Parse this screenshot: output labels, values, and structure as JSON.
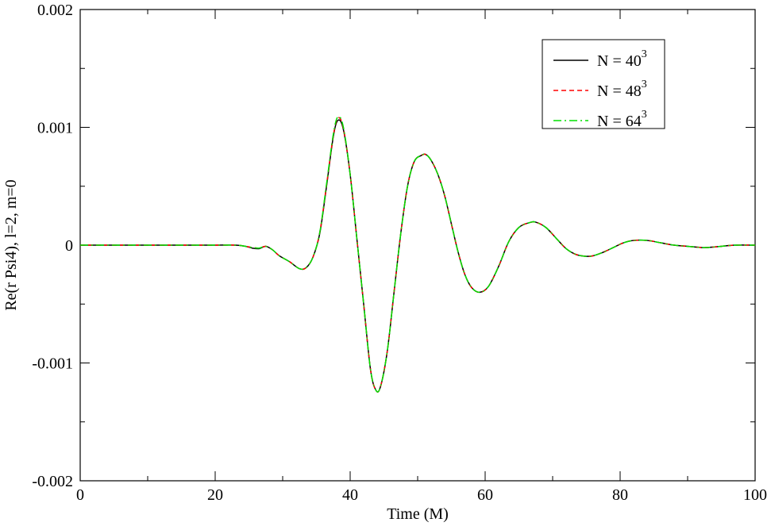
{
  "chart_data": {
    "type": "line",
    "xlabel": "Time (M)",
    "ylabel": "Re(r Psi4), l=2, m=0",
    "xlim": [
      0,
      100
    ],
    "ylim": [
      -0.002,
      0.002
    ],
    "xticks": [
      0,
      20,
      40,
      60,
      80,
      100
    ],
    "xtick_labels": [
      "0",
      "20",
      "40",
      "60",
      "80",
      "100"
    ],
    "yticks": [
      -0.002,
      -0.001,
      0,
      0.001,
      0.002
    ],
    "ytick_labels": [
      "-0.002",
      "-0.001",
      "0",
      "0.001",
      "0.002"
    ],
    "grid": false,
    "legend_position": "top-right",
    "x": [
      0,
      5,
      10,
      15,
      20,
      23,
      24.5,
      25.5,
      26.5,
      27.5,
      28.5,
      29.5,
      31,
      32.5,
      33.5,
      34.5,
      35.5,
      36.5,
      37.5,
      38.2,
      39,
      40,
      41,
      42,
      43,
      43.8,
      44.5,
      45.5,
      46.5,
      47.5,
      48.5,
      49.5,
      50.5,
      51.2,
      52,
      53,
      54,
      55,
      56,
      57,
      58,
      59.2,
      60.5,
      62,
      63.5,
      65,
      66.5,
      67.5,
      69,
      70.5,
      72,
      73.5,
      75,
      76,
      77.5,
      79,
      80.5,
      82,
      84,
      86,
      88,
      90,
      92,
      93,
      94,
      95,
      97,
      100
    ],
    "series": [
      {
        "name": "N = 40",
        "name_sup": "3",
        "color": "#000000",
        "dash": "solid",
        "values": [
          0,
          0,
          0,
          0,
          0,
          0,
          -1e-05,
          -2.5e-05,
          -3e-05,
          -1e-05,
          -4e-05,
          -9e-05,
          -0.00014,
          -0.0002,
          -0.00019,
          -0.0001,
          0.0001,
          0.0005,
          0.00092,
          0.00106,
          0.00098,
          0.0006,
          5e-05,
          -0.0005,
          -0.00105,
          -0.00123,
          -0.0012,
          -0.0009,
          -0.0004,
          0.0001,
          0.0005,
          0.00071,
          0.00076,
          0.00077,
          0.00072,
          0.0006,
          0.00042,
          0.00018,
          -6e-05,
          -0.00025,
          -0.00036,
          -0.0004,
          -0.00035,
          -0.00018,
          3e-05,
          0.00015,
          0.00019,
          0.000195,
          0.00015,
          6e-05,
          -3e-05,
          -8e-05,
          -9.5e-05,
          -9e-05,
          -6e-05,
          -2e-05,
          2e-05,
          4e-05,
          4e-05,
          2e-05,
          0,
          -1e-05,
          -2e-05,
          -2e-05,
          -1.5e-05,
          -1e-05,
          0,
          0
        ]
      },
      {
        "name": "N = 48",
        "name_sup": "3",
        "color": "#ff0000",
        "dash": "dashed",
        "values": [
          0,
          0,
          0,
          0,
          0,
          0,
          -1e-05,
          -2e-05,
          -2.5e-05,
          -1e-05,
          -4e-05,
          -9e-05,
          -0.00014,
          -0.0002,
          -0.00019,
          -0.0001,
          0.00011,
          0.00051,
          0.00093,
          0.00108,
          0.00099,
          0.0006,
          5e-05,
          -0.0005,
          -0.00105,
          -0.00123,
          -0.0012,
          -0.0009,
          -0.0004,
          0.0001,
          0.0005,
          0.00071,
          0.00076,
          0.00077,
          0.00072,
          0.0006,
          0.00042,
          0.00018,
          -6e-05,
          -0.00025,
          -0.00036,
          -0.0004,
          -0.00035,
          -0.00018,
          3e-05,
          0.00015,
          0.00019,
          0.000195,
          0.00015,
          6e-05,
          -3e-05,
          -8e-05,
          -9.5e-05,
          -9e-05,
          -6e-05,
          -2e-05,
          2e-05,
          4e-05,
          4e-05,
          2e-05,
          0,
          -1e-05,
          -2e-05,
          -2e-05,
          -1.5e-05,
          -1e-05,
          0,
          0
        ]
      },
      {
        "name": "N = 64",
        "name_sup": "3",
        "color": "#00e000",
        "dash": "dashdot",
        "values": [
          0,
          0,
          0,
          0,
          0,
          0,
          -1e-05,
          -2e-05,
          -2.5e-05,
          -1e-05,
          -4e-05,
          -9e-05,
          -0.00014,
          -0.0002,
          -0.00019,
          -0.0001,
          0.00011,
          0.00052,
          0.00094,
          0.00109,
          0.001,
          0.0006,
          5e-05,
          -0.0005,
          -0.00105,
          -0.00123,
          -0.0012,
          -0.0009,
          -0.0004,
          0.0001,
          0.0005,
          0.00071,
          0.00076,
          0.00077,
          0.00072,
          0.0006,
          0.00042,
          0.00018,
          -6e-05,
          -0.00025,
          -0.00036,
          -0.0004,
          -0.00035,
          -0.00018,
          3e-05,
          0.00015,
          0.00019,
          0.000195,
          0.00015,
          6e-05,
          -3e-05,
          -8e-05,
          -9.5e-05,
          -9e-05,
          -6e-05,
          -2e-05,
          2e-05,
          4e-05,
          4e-05,
          2e-05,
          0,
          -1e-05,
          -2e-05,
          -2e-05,
          -1.5e-05,
          -1e-05,
          0,
          0
        ]
      }
    ]
  }
}
